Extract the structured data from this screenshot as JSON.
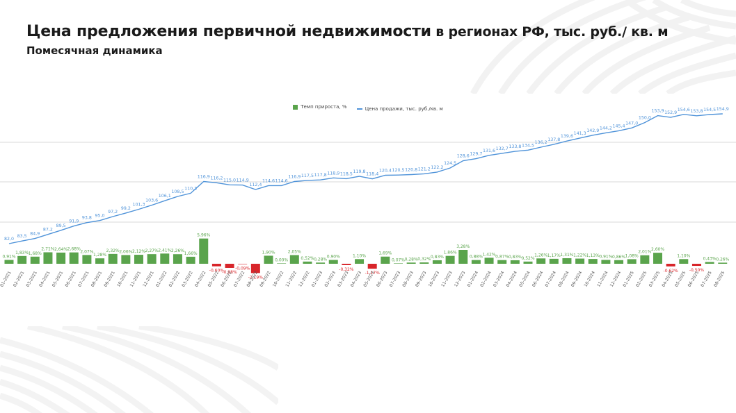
{
  "slide": {
    "title_bold": "Цена предложения первичной недвижимости",
    "title_rest": " в регионах РФ, тыс. руб./ кв. м",
    "subtitle": "Помесячная динамика"
  },
  "legend": {
    "bar_label": "Темп прироста, %",
    "line_label": "Цена продажи, тыс. руб./кв. м"
  },
  "colors": {
    "bar_positive": "#5aa44c",
    "bar_negative": "#d8252a",
    "line": "#4f93d9",
    "label_positive": "#5aa44c",
    "label_negative": "#d8252a",
    "line_label": "#4f93d9",
    "grid": "#d9d9d9"
  },
  "chart_data": {
    "type": "bar+line",
    "title": "Цена предложения первичной недвижимости в регионах РФ, тыс. руб./ кв. м",
    "subtitle": "Помесячная динамика",
    "xlabel": "",
    "ylabel": "",
    "legend_position": "top",
    "grid": true,
    "categories": [
      "01-2021",
      "02-2021",
      "03-2021",
      "04-2021",
      "05-2021",
      "06-2021",
      "07-2021",
      "08-2021",
      "09-2021",
      "10-2021",
      "11-2021",
      "12-2021",
      "01-2022",
      "02-2022",
      "03-2022",
      "04-2022",
      "05-2022",
      "06-2022",
      "07-2022",
      "08-2022",
      "09-2022",
      "10-2022",
      "11-2022",
      "12-2022",
      "01-2023",
      "02-2023",
      "03-2023",
      "04-2023",
      "05-2023",
      "06-2023",
      "07-2023",
      "08-2023",
      "09-2023",
      "10-2023",
      "11-2023",
      "12-2023",
      "01-2024",
      "02-2024",
      "03-2024",
      "04-2024",
      "05-2024",
      "06-2024",
      "07-2024",
      "08-2024",
      "09-2024",
      "10-2024",
      "11-2024",
      "12-2024",
      "01-2025",
      "02-2025",
      "03-2025",
      "04-2025",
      "05-2025",
      "06-2025",
      "07-2025",
      "08-2025"
    ],
    "series": [
      {
        "name": "Темп прироста, %",
        "type": "bar",
        "values": [
          0.91,
          1.83,
          1.68,
          2.71,
          2.64,
          2.68,
          2.07,
          1.28,
          2.32,
          2.06,
          2.12,
          2.27,
          2.41,
          2.26,
          1.66,
          5.96,
          -0.6,
          -0.98,
          -0.09,
          -2.19,
          1.9,
          0.0,
          2.05,
          0.52,
          0.28,
          0.9,
          -0.32,
          1.1,
          -1.17,
          1.69,
          0.07,
          0.28,
          0.32,
          0.83,
          1.86,
          3.28,
          0.88,
          1.42,
          0.87,
          0.83,
          0.52,
          1.26,
          1.17,
          1.31,
          1.22,
          1.13,
          0.91,
          0.86,
          1.08,
          2.01,
          2.6,
          -0.62,
          1.1,
          -0.5,
          0.43,
          0.26
        ],
        "labels": [
          "0,91%",
          "1,83%",
          "1,68%",
          "2,71%",
          "2,64%",
          "2,68%",
          "2,07%",
          "1,28%",
          "2,32%",
          "2,06%",
          "2,12%",
          "2,27%",
          "2,41%",
          "2,26%",
          "1,66%",
          "5,96%",
          "-0,60%",
          "-0,98%",
          "-0,09%",
          "-2,19%",
          "1,90%",
          "0,00%",
          "2,05%",
          "0,52%",
          "0,28%",
          "0,90%",
          "-0,32%",
          "1,10%",
          "-1,17%",
          "1,69%",
          "0,07%",
          "0,28%",
          "0,32%",
          "0,83%",
          "1,86%",
          "3,28%",
          "0,88%",
          "1,42%",
          "0,87%",
          "0,83%",
          "0,52%",
          "1,26%",
          "1,17%",
          "1,31%",
          "1,22%",
          "1,13%",
          "0,91%",
          "0,86%",
          "1,08%",
          "2,01%",
          "2,60%",
          "-0,62%",
          "1,10%",
          "-0,50%",
          "0,43%",
          "0,26%"
        ]
      },
      {
        "name": "Цена продажи, тыс. руб./кв. м",
        "type": "line",
        "values": [
          82.0,
          83.5,
          84.9,
          87.2,
          89.5,
          91.9,
          93.8,
          95.0,
          97.2,
          99.2,
          101.3,
          103.6,
          106.1,
          108.5,
          110.3,
          116.9,
          116.2,
          115.0,
          114.9,
          112.4,
          114.6,
          114.6,
          116.9,
          117.5,
          117.8,
          118.9,
          118.5,
          119.8,
          118.4,
          120.4,
          120.5,
          120.8,
          121.2,
          122.2,
          124.5,
          128.6,
          129.7,
          131.6,
          132.7,
          133.8,
          134.5,
          136.2,
          137.8,
          139.6,
          141.3,
          142.9,
          144.2,
          145.4,
          147.0,
          150.0,
          153.9,
          152.9,
          154.6,
          153.8,
          154.5,
          154.9
        ],
        "labels": [
          "82,0",
          "83,5",
          "84,9",
          "87,2",
          "89,5",
          "91,9",
          "93,8",
          "95,0",
          "97,2",
          "99,2",
          "101,3",
          "103,6",
          "106,1",
          "108,5",
          "110,3",
          "116,9",
          "116,2",
          "115,0",
          "114,9",
          "112,4",
          "114,6",
          "114,6",
          "116,9",
          "117,5",
          "117,8",
          "118,9",
          "118,5",
          "119,8",
          "118,4",
          "120,4",
          "120,5",
          "120,8",
          "121,2",
          "122,2",
          "124,5",
          "128,6",
          "129,7",
          "131,6",
          "132,7",
          "133,8",
          "134,5",
          "136,2",
          "137,8",
          "139,6",
          "141,3",
          "142,9",
          "144,2",
          "145,4",
          "147,0",
          "150,0",
          "153,9",
          "152,9",
          "154,6",
          "153,8",
          "154,5",
          "154,9"
        ]
      }
    ]
  }
}
